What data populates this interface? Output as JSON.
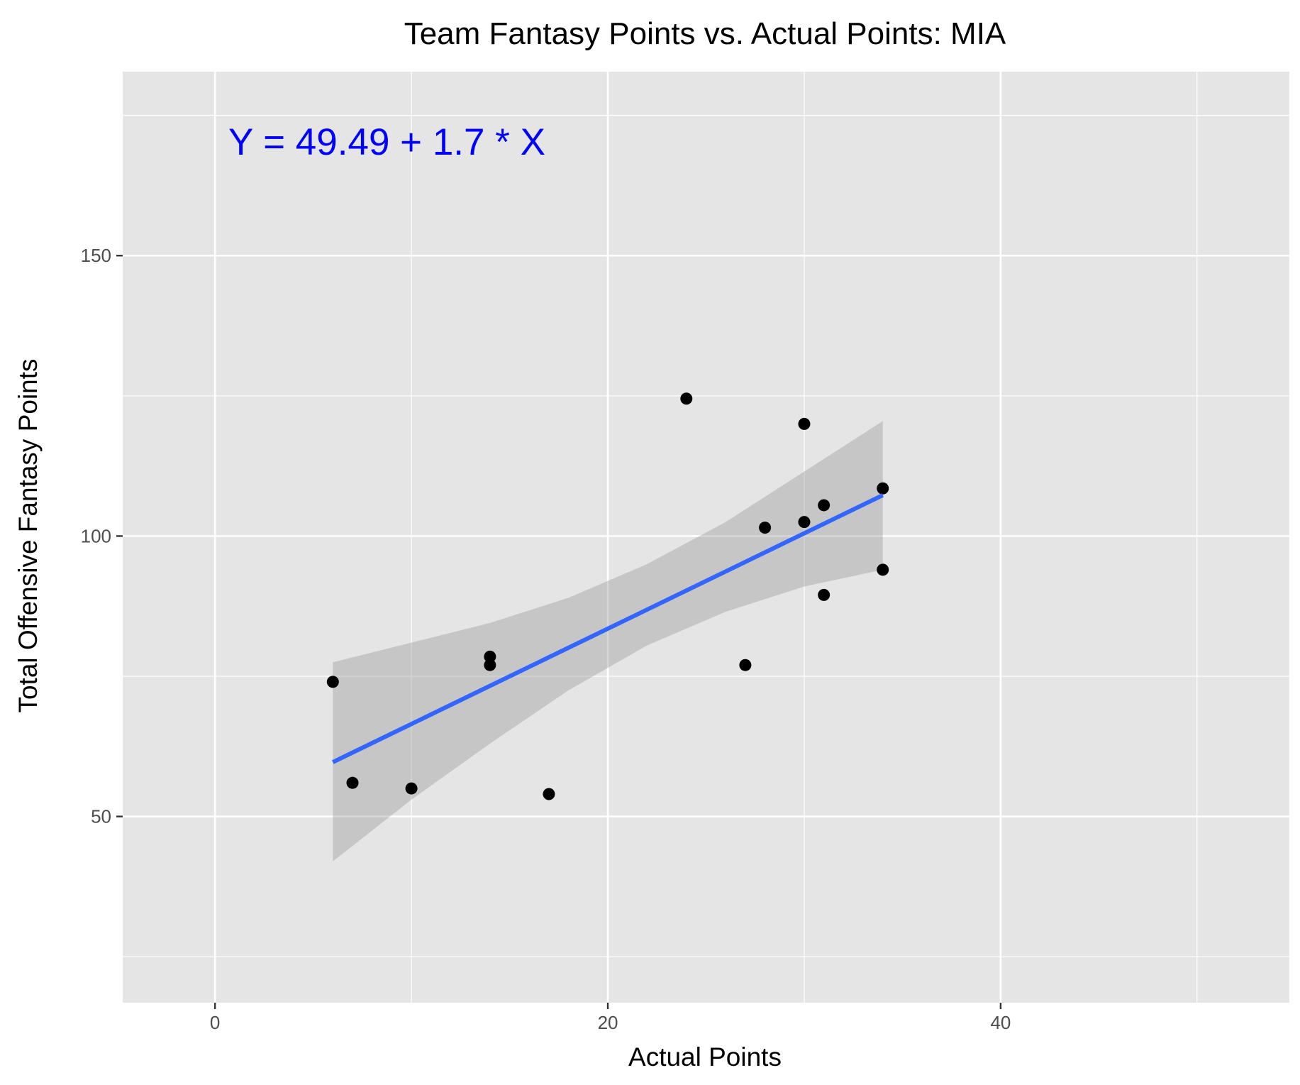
{
  "chart_data": {
    "type": "scatter",
    "title": "Team Fantasy Points vs. Actual Points: MIA",
    "xlabel": "Actual Points",
    "ylabel": "Total Offensive Fantasy Points",
    "xlim": [
      -4.7,
      54.7
    ],
    "ylim": [
      16.8,
      182.8
    ],
    "x_ticks": [
      0,
      20,
      40
    ],
    "y_ticks": [
      50,
      100,
      150
    ],
    "x_minor_gridlines": [
      10,
      30,
      50
    ],
    "y_minor_gridlines": [
      25,
      75,
      125,
      175
    ],
    "grid": true,
    "legend": "none",
    "annotation": {
      "text": "Y = 49.49 + 1.7 * X",
      "color": "#0000FF"
    },
    "points": [
      {
        "x": 6,
        "y": 74
      },
      {
        "x": 7,
        "y": 56
      },
      {
        "x": 10,
        "y": 55
      },
      {
        "x": 14,
        "y": 78.5
      },
      {
        "x": 14,
        "y": 77
      },
      {
        "x": 17,
        "y": 54
      },
      {
        "x": 24,
        "y": 124.5
      },
      {
        "x": 27,
        "y": 77
      },
      {
        "x": 28,
        "y": 101.5
      },
      {
        "x": 30,
        "y": 120
      },
      {
        "x": 30,
        "y": 102.5
      },
      {
        "x": 31,
        "y": 105.5
      },
      {
        "x": 31,
        "y": 89.5
      },
      {
        "x": 34,
        "y": 108.5
      },
      {
        "x": 34,
        "y": 94
      }
    ],
    "regression": {
      "intercept": 49.49,
      "slope": 1.7,
      "x_range": [
        6,
        34
      ],
      "line_color": "#3366FF",
      "confidence_band": [
        {
          "x": 6,
          "lower": 42,
          "upper": 77.5
        },
        {
          "x": 10,
          "lower": 53,
          "upper": 81
        },
        {
          "x": 14,
          "lower": 63,
          "upper": 84.5
        },
        {
          "x": 18,
          "lower": 72.5,
          "upper": 89
        },
        {
          "x": 22,
          "lower": 80.5,
          "upper": 95
        },
        {
          "x": 26,
          "lower": 86.5,
          "upper": 102.5
        },
        {
          "x": 30,
          "lower": 91,
          "upper": 111.5
        },
        {
          "x": 34,
          "lower": 94,
          "upper": 120.5
        }
      ]
    }
  }
}
